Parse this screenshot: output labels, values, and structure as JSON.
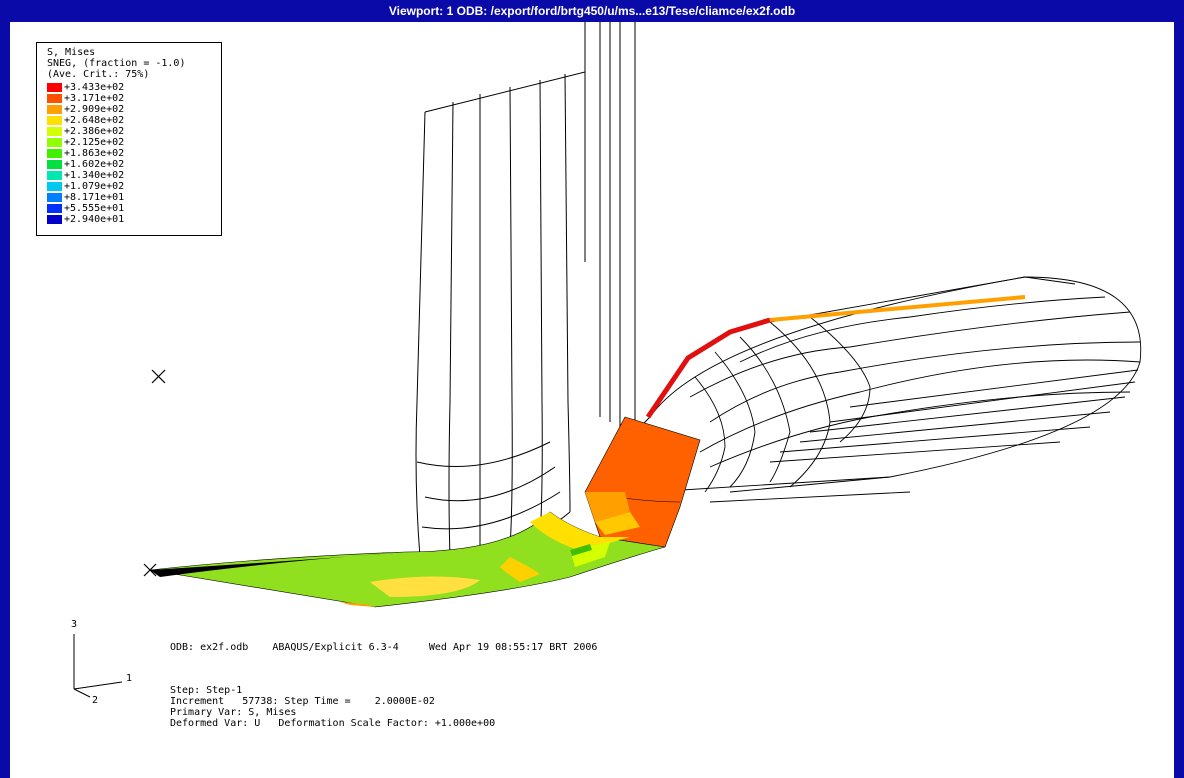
{
  "window": {
    "title": "Viewport: 1     ODB: /export/ford/brtg450/u/ms...e13/Tese/cliamce/ex2f.odb"
  },
  "legend": {
    "header": [
      "S, Mises",
      "SNEG, (fraction = -1.0)",
      "(Ave. Crit.: 75%)"
    ],
    "entries": [
      {
        "value": "+3.433e+02",
        "color": "#ff0000"
      },
      {
        "value": "+3.171e+02",
        "color": "#ff5000"
      },
      {
        "value": "+2.909e+02",
        "color": "#ffa000"
      },
      {
        "value": "+2.648e+02",
        "color": "#ffe000"
      },
      {
        "value": "+2.386e+02",
        "color": "#d4ff00"
      },
      {
        "value": "+2.125e+02",
        "color": "#90ff00"
      },
      {
        "value": "+1.863e+02",
        "color": "#40f000"
      },
      {
        "value": "+1.602e+02",
        "color": "#00e040"
      },
      {
        "value": "+1.340e+02",
        "color": "#00e8b0"
      },
      {
        "value": "+1.079e+02",
        "color": "#00c8f0"
      },
      {
        "value": "+8.171e+01",
        "color": "#0080ff"
      },
      {
        "value": "+5.555e+01",
        "color": "#0030ff"
      },
      {
        "value": "+2.940e+01",
        "color": "#0000c8"
      }
    ]
  },
  "triad": {
    "axis1": "1",
    "axis2": "2",
    "axis3": "3"
  },
  "info": {
    "odb_line": "ODB: ex2f.odb    ABAQUS/Explicit 6.3-4     Wed Apr 19 08:55:17 BRT 2006",
    "step": "Step: Step-1",
    "increment": "Increment   57738: Step Time =    2.0000E-02",
    "primary_var": "Primary Var: S, Mises",
    "deformed_var": "Deformed Var: U   Deformation Scale Factor: +1.000e+00"
  },
  "colors": {
    "frame": "#0a0aa8",
    "mesh_line": "#000000",
    "low_stress": "#90e020",
    "mid_stress": "#ffe000",
    "high_stress": "#ff6000",
    "peak_stress": "#e01010"
  }
}
